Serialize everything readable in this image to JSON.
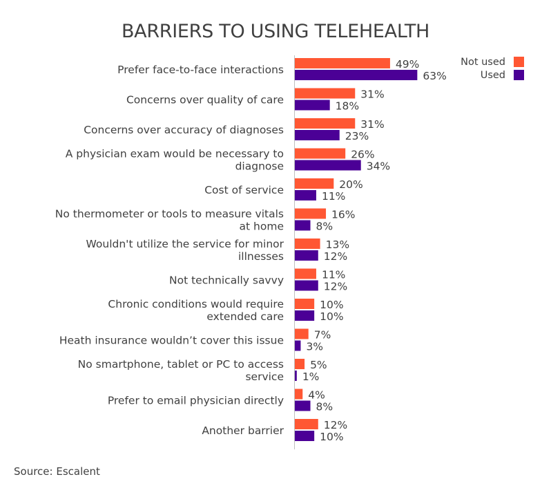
{
  "chart_data": {
    "type": "bar",
    "orientation": "horizontal",
    "title": "BARRIERS TO USING TELEHEALTH",
    "categories": [
      [
        "Prefer face-to-face interactions"
      ],
      [
        "Concerns over quality of care"
      ],
      [
        "Concerns over accuracy of diagnoses"
      ],
      [
        "A physician exam would be necessary to",
        "diagnose"
      ],
      [
        "Cost of service"
      ],
      [
        "No thermometer or tools to measure vitals",
        "at home"
      ],
      [
        "Wouldn't utilize the service for minor",
        "illnesses"
      ],
      [
        "Not technically savvy"
      ],
      [
        "Chronic conditions would require",
        "extended care"
      ],
      [
        "Heath insurance wouldn’t cover this issue"
      ],
      [
        "No smartphone, tablet or PC to access",
        "service"
      ],
      [
        "Prefer to email physician directly"
      ],
      [
        "Another barrier"
      ]
    ],
    "series": [
      {
        "name": "Not used",
        "color": "#FF5733",
        "values": [
          49,
          31,
          31,
          26,
          20,
          16,
          13,
          11,
          10,
          7,
          5,
          4,
          12
        ]
      },
      {
        "name": "Used",
        "color": "#4B0096",
        "values": [
          63,
          18,
          23,
          34,
          11,
          8,
          12,
          12,
          10,
          3,
          1,
          8,
          10
        ]
      }
    ],
    "value_suffix": "%",
    "xlim": [
      0,
      100
    ],
    "legend_position": "top-right",
    "grid": false
  },
  "source": "Source: Escalent"
}
